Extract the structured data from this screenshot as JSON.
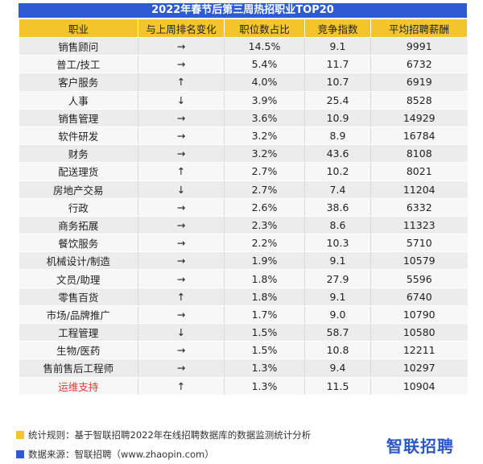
{
  "title": "2022年春节后第三周热招职业TOP20",
  "columns": [
    "职业",
    "与上周排名变化",
    "职位数占比",
    "竞争指数",
    "平均招聘薪酬"
  ],
  "rows": [
    {
      "job": "销售顾问",
      "change": "→",
      "share": "14.5%",
      "competition": "9.1",
      "salary": "9991"
    },
    {
      "job": "普工/技工",
      "change": "→",
      "share": "5.4%",
      "competition": "11.7",
      "salary": "6732"
    },
    {
      "job": "客户服务",
      "change": "↑",
      "share": "4.0%",
      "competition": "10.7",
      "salary": "6919"
    },
    {
      "job": "人事",
      "change": "↓",
      "share": "3.9%",
      "competition": "25.4",
      "salary": "8528"
    },
    {
      "job": "销售管理",
      "change": "→",
      "share": "3.6%",
      "competition": "10.9",
      "salary": "14929"
    },
    {
      "job": "软件研发",
      "change": "→",
      "share": "3.2%",
      "competition": "8.9",
      "salary": "16784"
    },
    {
      "job": "财务",
      "change": "→",
      "share": "3.2%",
      "competition": "43.6",
      "salary": "8108"
    },
    {
      "job": "配送理货",
      "change": "↑",
      "share": "2.7%",
      "competition": "10.2",
      "salary": "8021"
    },
    {
      "job": "房地产交易",
      "change": "↓",
      "share": "2.7%",
      "competition": "7.4",
      "salary": "11204"
    },
    {
      "job": "行政",
      "change": "→",
      "share": "2.6%",
      "competition": "38.6",
      "salary": "6332"
    },
    {
      "job": "商务拓展",
      "change": "→",
      "share": "2.3%",
      "competition": "8.6",
      "salary": "11323"
    },
    {
      "job": "餐饮服务",
      "change": "→",
      "share": "2.2%",
      "competition": "10.3",
      "salary": "5710"
    },
    {
      "job": "机械设计/制造",
      "change": "→",
      "share": "1.9%",
      "competition": "9.1",
      "salary": "10579"
    },
    {
      "job": "文员/助理",
      "change": "→",
      "share": "1.8%",
      "competition": "27.9",
      "salary": "5596"
    },
    {
      "job": "零售百货",
      "change": "↑",
      "share": "1.8%",
      "competition": "9.1",
      "salary": "6740"
    },
    {
      "job": "市场/品牌推广",
      "change": "→",
      "share": "1.7%",
      "competition": "9.0",
      "salary": "10790"
    },
    {
      "job": "工程管理",
      "change": "↓",
      "share": "1.5%",
      "competition": "58.7",
      "salary": "10580"
    },
    {
      "job": "生物/医药",
      "change": "→",
      "share": "1.5%",
      "competition": "10.8",
      "salary": "12211"
    },
    {
      "job": "售前售后工程师",
      "change": "→",
      "share": "1.3%",
      "competition": "9.4",
      "salary": "10297"
    },
    {
      "job": "运维支持",
      "change": "↑",
      "share": "1.3%",
      "competition": "11.5",
      "salary": "10904",
      "highlight": true
    }
  ],
  "footer": {
    "rule": "统计规则：基于智联招聘2022年在线招聘数据库的数据监测统计分析",
    "source": "数据来源：智联招聘（www.zhaopin.com）"
  },
  "logo_text": "智联招聘",
  "colors": {
    "title_bg": "#2d5bd1",
    "header_bg": "#f3c52b",
    "highlight": "#e23a2e",
    "rule_square": "#f3c52b",
    "source_square": "#2d5bd1"
  }
}
